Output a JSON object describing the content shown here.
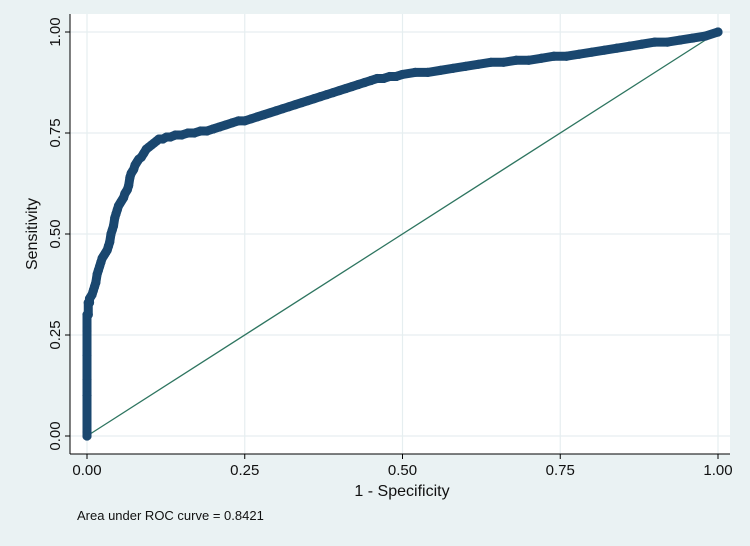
{
  "chart_data": {
    "type": "line",
    "title": "",
    "xlabel": "1 - Specificity",
    "ylabel": "Sensitivity",
    "xlim": [
      0,
      1
    ],
    "ylim": [
      0,
      1
    ],
    "x_ticks": [
      0,
      0.25,
      0.5,
      0.75,
      1
    ],
    "y_ticks": [
      0,
      0.25,
      0.5,
      0.75,
      1
    ],
    "x_tick_labels": [
      "0.00",
      "0.25",
      "0.50",
      "0.75",
      "1.00"
    ],
    "y_tick_labels": [
      "0.00",
      "0.25",
      "0.50",
      "0.75",
      "1.00"
    ],
    "grid": true,
    "legend": "none",
    "note": "Area under ROC curve = 0.8421",
    "colors": {
      "outer_background": "#eaf2f3",
      "plot_background": "#ffffff",
      "grid": "#e6eef0",
      "roc_curve": "#1a476f",
      "reference_line": "#2e7560"
    },
    "series": [
      {
        "style": "connected-markers",
        "x": [
          0.0,
          0.0,
          0.0,
          0.0,
          0.0,
          0.0,
          0.0,
          0.002,
          0.002,
          0.004,
          0.004,
          0.006,
          0.008,
          0.01,
          0.012,
          0.014,
          0.016,
          0.018,
          0.02,
          0.022,
          0.024,
          0.026,
          0.028,
          0.03,
          0.032,
          0.034,
          0.036,
          0.038,
          0.04,
          0.042,
          0.044,
          0.046,
          0.048,
          0.05,
          0.052,
          0.054,
          0.056,
          0.058,
          0.06,
          0.062,
          0.064,
          0.066,
          0.068,
          0.07,
          0.072,
          0.074,
          0.076,
          0.078,
          0.08,
          0.082,
          0.086,
          0.09,
          0.094,
          0.098,
          0.102,
          0.106,
          0.11,
          0.114,
          0.12,
          0.126,
          0.132,
          0.14,
          0.15,
          0.16,
          0.17,
          0.18,
          0.19,
          0.2,
          0.21,
          0.22,
          0.23,
          0.24,
          0.25,
          0.26,
          0.27,
          0.28,
          0.29,
          0.3,
          0.31,
          0.32,
          0.33,
          0.34,
          0.35,
          0.36,
          0.37,
          0.38,
          0.39,
          0.4,
          0.41,
          0.42,
          0.43,
          0.44,
          0.45,
          0.46,
          0.47,
          0.48,
          0.49,
          0.5,
          0.52,
          0.54,
          0.56,
          0.58,
          0.6,
          0.62,
          0.64,
          0.66,
          0.68,
          0.7,
          0.72,
          0.74,
          0.76,
          0.78,
          0.8,
          0.82,
          0.84,
          0.86,
          0.88,
          0.9,
          0.92,
          0.94,
          0.96,
          0.98,
          1.0
        ],
        "y": [
          0.0,
          0.01,
          0.1,
          0.14,
          0.2,
          0.26,
          0.3,
          0.3,
          0.33,
          0.33,
          0.34,
          0.345,
          0.35,
          0.36,
          0.37,
          0.38,
          0.4,
          0.41,
          0.42,
          0.43,
          0.44,
          0.445,
          0.45,
          0.455,
          0.46,
          0.47,
          0.48,
          0.5,
          0.51,
          0.52,
          0.54,
          0.55,
          0.56,
          0.57,
          0.575,
          0.58,
          0.585,
          0.59,
          0.6,
          0.605,
          0.61,
          0.62,
          0.64,
          0.65,
          0.655,
          0.66,
          0.67,
          0.675,
          0.68,
          0.685,
          0.69,
          0.7,
          0.71,
          0.715,
          0.72,
          0.725,
          0.73,
          0.735,
          0.735,
          0.74,
          0.74,
          0.745,
          0.745,
          0.75,
          0.75,
          0.755,
          0.755,
          0.76,
          0.765,
          0.77,
          0.775,
          0.78,
          0.78,
          0.785,
          0.79,
          0.795,
          0.8,
          0.805,
          0.81,
          0.815,
          0.82,
          0.825,
          0.83,
          0.835,
          0.84,
          0.845,
          0.85,
          0.855,
          0.86,
          0.865,
          0.87,
          0.875,
          0.88,
          0.885,
          0.885,
          0.89,
          0.89,
          0.895,
          0.9,
          0.9,
          0.905,
          0.91,
          0.915,
          0.92,
          0.925,
          0.925,
          0.93,
          0.93,
          0.935,
          0.94,
          0.94,
          0.945,
          0.95,
          0.955,
          0.96,
          0.965,
          0.97,
          0.975,
          0.975,
          0.98,
          0.985,
          0.99,
          1.0
        ]
      },
      {
        "style": "reference-line",
        "x": [
          0,
          1
        ],
        "y": [
          0,
          1
        ]
      }
    ]
  }
}
